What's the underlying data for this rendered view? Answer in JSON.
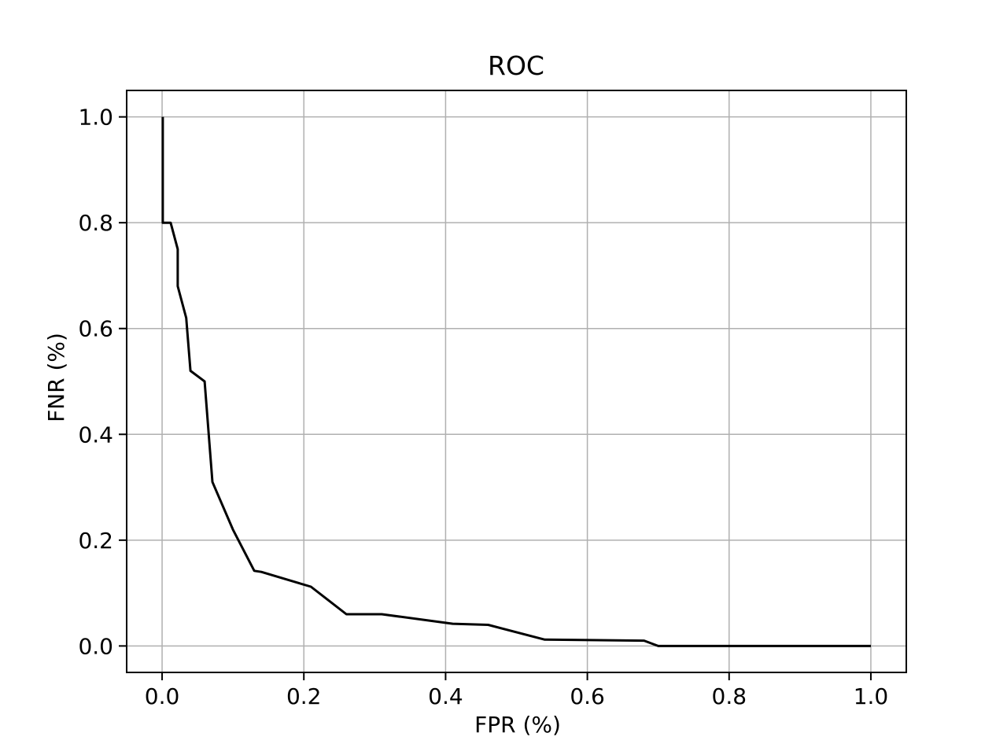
{
  "figure": {
    "background": "#ffffff",
    "text_color": "#000000",
    "spine_color": "#000000"
  },
  "chart_data": {
    "type": "line",
    "title": "ROC",
    "xlabel": "FPR (%)",
    "ylabel": "FNR (%)",
    "xlim": [
      -0.05,
      1.05
    ],
    "ylim": [
      -0.05,
      1.05
    ],
    "xticks": [
      0.0,
      0.2,
      0.4,
      0.6,
      0.8,
      1.0
    ],
    "yticks": [
      0.0,
      0.2,
      0.4,
      0.6,
      0.8,
      1.0
    ],
    "xtick_labels": [
      "0.0",
      "0.2",
      "0.4",
      "0.6",
      "0.8",
      "1.0"
    ],
    "ytick_labels": [
      "0.0",
      "0.2",
      "0.4",
      "0.6",
      "0.8",
      "1.0"
    ],
    "grid": true,
    "grid_color": "#b0b0b0",
    "legend": "none",
    "series": [
      {
        "name": "roc-curve",
        "color": "#000000",
        "line_width": 3,
        "points": [
          [
            0.001,
            1.0
          ],
          [
            0.001,
            0.8
          ],
          [
            0.012,
            0.8
          ],
          [
            0.022,
            0.75
          ],
          [
            0.022,
            0.68
          ],
          [
            0.034,
            0.62
          ],
          [
            0.04,
            0.52
          ],
          [
            0.06,
            0.5
          ],
          [
            0.071,
            0.31
          ],
          [
            0.1,
            0.22
          ],
          [
            0.13,
            0.142
          ],
          [
            0.14,
            0.14
          ],
          [
            0.21,
            0.112
          ],
          [
            0.26,
            0.06
          ],
          [
            0.31,
            0.06
          ],
          [
            0.41,
            0.042
          ],
          [
            0.46,
            0.04
          ],
          [
            0.54,
            0.012
          ],
          [
            0.68,
            0.01
          ],
          [
            0.7,
            0.0
          ],
          [
            1.0,
            0.0
          ]
        ]
      }
    ]
  }
}
